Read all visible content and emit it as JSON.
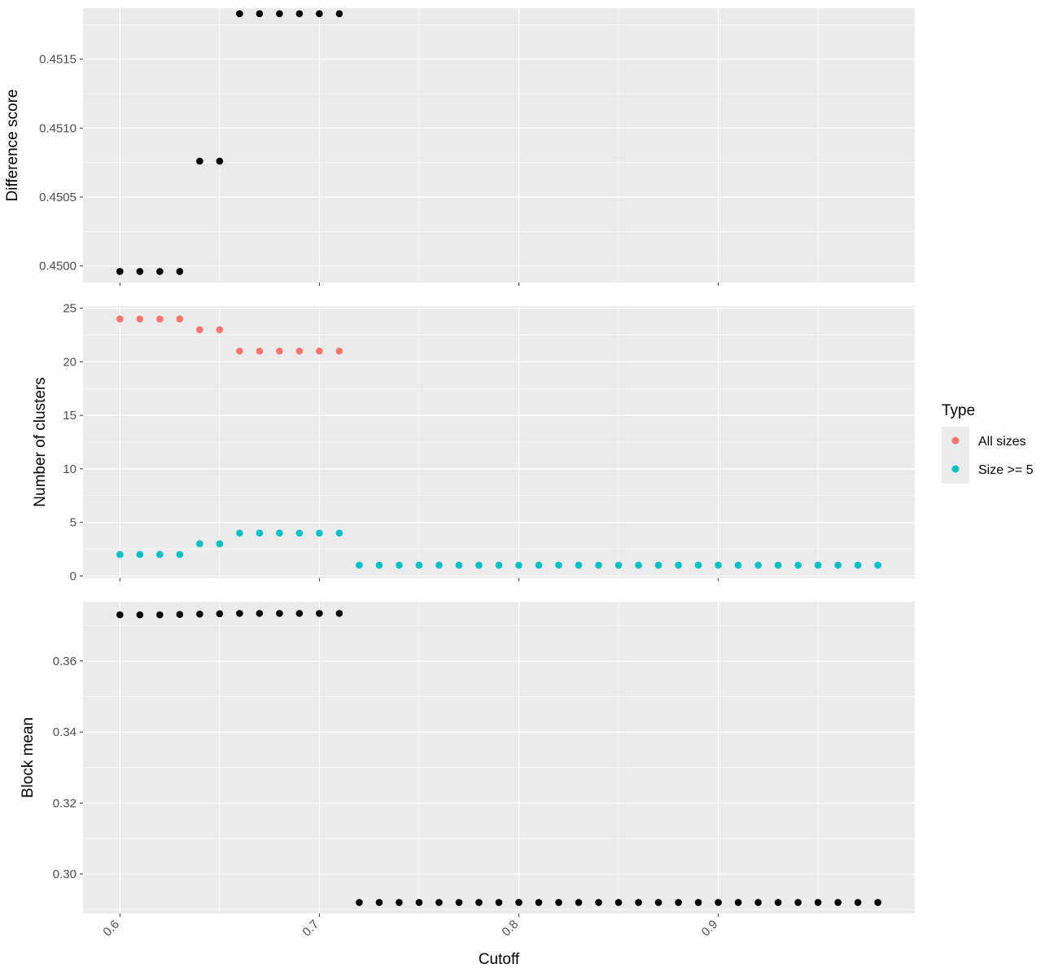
{
  "chart_data": [
    {
      "type": "scatter",
      "ylabel": "Difference score",
      "ylim": [
        0.44988,
        0.45187
      ],
      "yticks": [
        0.45,
        0.4505,
        0.451,
        0.4515
      ],
      "ytick_labels": [
        "0.4500",
        "0.4505",
        "0.4510",
        "0.4515"
      ],
      "xlim": [
        0.5815,
        0.9985
      ],
      "xticks": [
        0.6,
        0.7,
        0.8,
        0.9
      ],
      "grid": true,
      "series": [
        {
          "color": "#000000",
          "x": [
            0.6,
            0.61,
            0.62,
            0.63,
            0.64,
            0.65,
            0.66,
            0.67,
            0.68,
            0.69,
            0.7,
            0.71
          ],
          "y": [
            0.44996,
            0.44996,
            0.44996,
            0.44996,
            0.45076,
            0.45076,
            0.45183,
            0.45183,
            0.45183,
            0.45183,
            0.45183,
            0.45183
          ]
        }
      ]
    },
    {
      "type": "scatter",
      "ylabel": "Number of clusters",
      "ylim": [
        -0.2,
        25.2
      ],
      "yticks": [
        0,
        5,
        10,
        15,
        20,
        25
      ],
      "ytick_labels": [
        "0",
        "5",
        "10",
        "15",
        "20",
        "25"
      ],
      "xlim": [
        0.5815,
        0.9985
      ],
      "xticks": [
        0.6,
        0.7,
        0.8,
        0.9
      ],
      "grid": true,
      "series": [
        {
          "name": "All sizes",
          "color": "#F8766D",
          "x": [
            0.6,
            0.61,
            0.62,
            0.63,
            0.64,
            0.65,
            0.66,
            0.67,
            0.68,
            0.69,
            0.7,
            0.71
          ],
          "y": [
            24,
            24,
            24,
            24,
            23,
            23,
            21,
            21,
            21,
            21,
            21,
            21
          ]
        },
        {
          "name": "Size >= 5",
          "color": "#00BFC4",
          "x": [
            0.6,
            0.61,
            0.62,
            0.63,
            0.64,
            0.65,
            0.66,
            0.67,
            0.68,
            0.69,
            0.7,
            0.71,
            0.72,
            0.73,
            0.74,
            0.75,
            0.76,
            0.77,
            0.78,
            0.79,
            0.8,
            0.81,
            0.82,
            0.83,
            0.84,
            0.85,
            0.86,
            0.87,
            0.88,
            0.89,
            0.9,
            0.91,
            0.92,
            0.93,
            0.94,
            0.95,
            0.96,
            0.97,
            0.98
          ],
          "y": [
            2,
            2,
            2,
            2,
            3,
            3,
            4,
            4,
            4,
            4,
            4,
            4,
            1,
            1,
            1,
            1,
            1,
            1,
            1,
            1,
            1,
            1,
            1,
            1,
            1,
            1,
            1,
            1,
            1,
            1,
            1,
            1,
            1,
            1,
            1,
            1,
            1,
            1,
            1
          ]
        }
      ]
    },
    {
      "type": "scatter",
      "ylabel": "Block mean",
      "ylim": [
        0.2889,
        0.3767
      ],
      "yticks": [
        0.3,
        0.32,
        0.34,
        0.36
      ],
      "ytick_labels": [
        "0.30",
        "0.32",
        "0.34",
        "0.36"
      ],
      "xlim": [
        0.5815,
        0.9985
      ],
      "xticks": [
        0.6,
        0.7,
        0.8,
        0.9
      ],
      "xtick_labels": [
        "0.6",
        "0.7",
        "0.8",
        "0.9"
      ],
      "xlabel": "Cutoff",
      "grid": true,
      "series": [
        {
          "color": "#000000",
          "x": [
            0.6,
            0.61,
            0.62,
            0.63,
            0.64,
            0.65,
            0.66,
            0.67,
            0.68,
            0.69,
            0.7,
            0.71,
            0.72,
            0.73,
            0.74,
            0.75,
            0.76,
            0.77,
            0.78,
            0.79,
            0.8,
            0.81,
            0.82,
            0.83,
            0.84,
            0.85,
            0.86,
            0.87,
            0.88,
            0.89,
            0.9,
            0.91,
            0.92,
            0.93,
            0.94,
            0.95,
            0.96,
            0.97,
            0.98
          ],
          "y": [
            0.373,
            0.373,
            0.373,
            0.3731,
            0.3732,
            0.3733,
            0.3734,
            0.3734,
            0.3734,
            0.3734,
            0.3734,
            0.3734,
            0.292,
            0.292,
            0.292,
            0.292,
            0.292,
            0.292,
            0.292,
            0.292,
            0.292,
            0.292,
            0.292,
            0.292,
            0.292,
            0.292,
            0.292,
            0.292,
            0.292,
            0.292,
            0.292,
            0.292,
            0.292,
            0.292,
            0.292,
            0.292,
            0.292,
            0.292,
            0.292
          ]
        }
      ]
    }
  ],
  "legend": {
    "title": "Type",
    "placement": "right",
    "items": [
      {
        "label": "All sizes",
        "color": "#F8766D"
      },
      {
        "label": "Size >= 5",
        "color": "#00BFC4"
      }
    ]
  },
  "colors": {
    "panel_background": "#EBEBEB",
    "grid_major": "#FFFFFF",
    "tick_text": "#4D4D4D"
  }
}
